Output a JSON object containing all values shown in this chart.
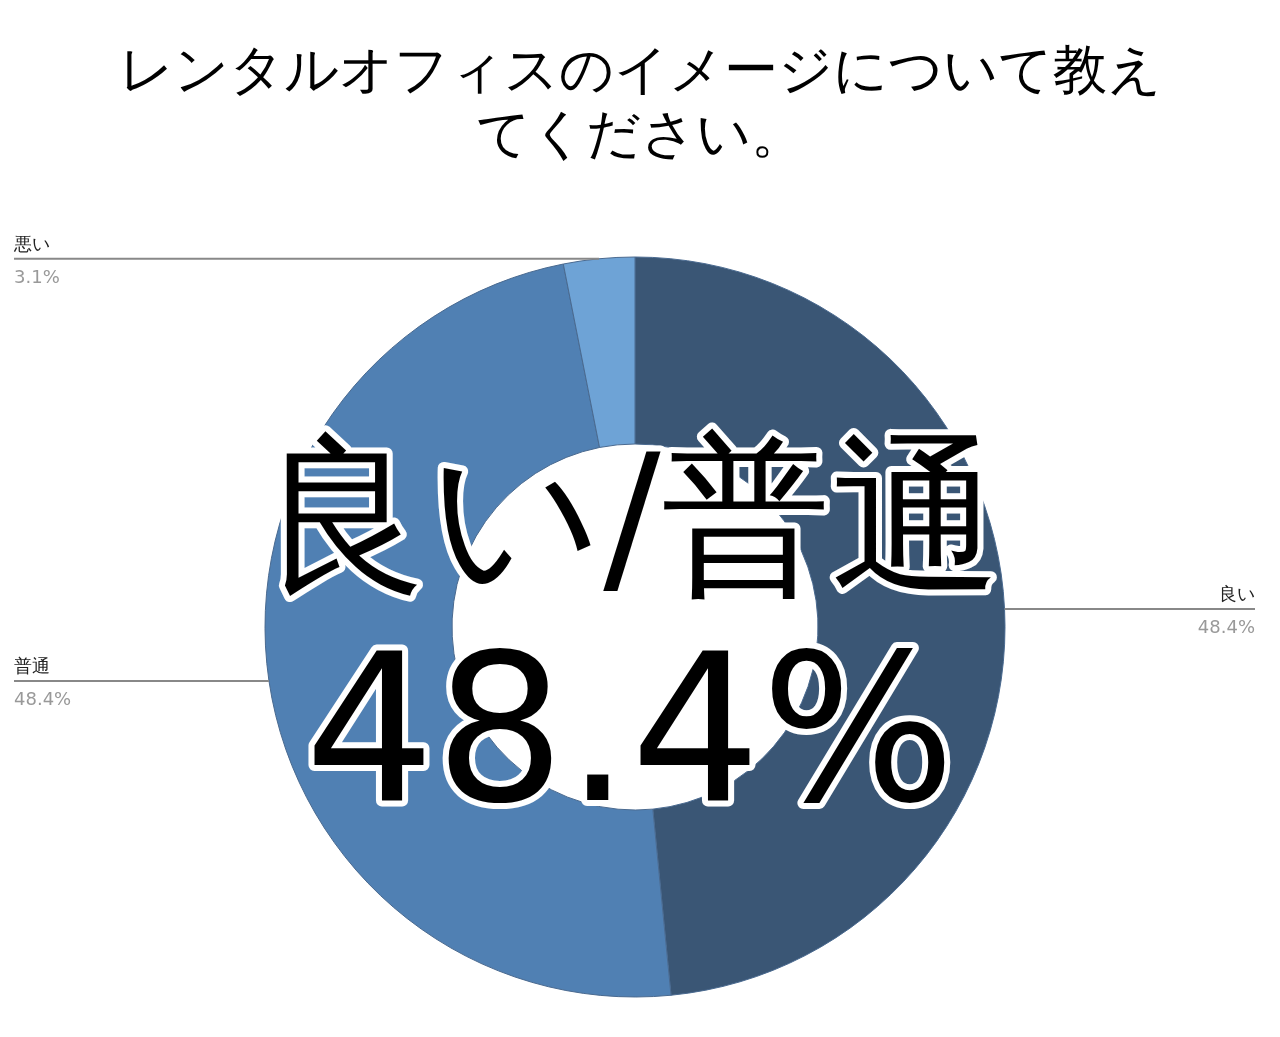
{
  "chart_data": {
    "type": "donut",
    "title": "レンタルオフィスのイメージについて教えてください。",
    "categories": [
      "良い",
      "普通",
      "悪い"
    ],
    "values": [
      48.4,
      48.4,
      3.1
    ],
    "colors": [
      "#3a5675",
      "#5080b3",
      "#6ea3d6"
    ],
    "value_labels": [
      "48.4%",
      "48.4%",
      "3.1%"
    ],
    "annotations": [
      "良い/普通",
      "48.4%"
    ]
  }
}
